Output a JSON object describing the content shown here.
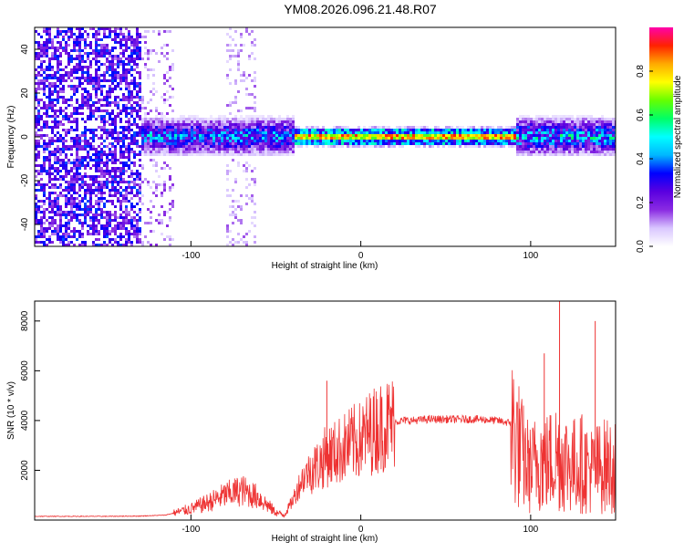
{
  "title": "YM08.2026.096.21.48.R07",
  "colors": {
    "spectrogram_low": "#e8dcff",
    "spectrogram_mid": "#6a1fd6",
    "snr_line": "#ee3333",
    "colormap": [
      "#ffffff",
      "#d9c6ff",
      "#8a2be2",
      "#5a00e0",
      "#0000ff",
      "#00b7ff",
      "#00ffff",
      "#00ff66",
      "#66ff00",
      "#ffff00",
      "#ffaa00",
      "#ff2200",
      "#ff00aa"
    ]
  },
  "chart_data": [
    {
      "type": "heatmap",
      "name": "spectrogram",
      "xlabel": "Height of straight line (km)",
      "ylabel": "Frequency (Hz)",
      "xlim": [
        -192,
        150
      ],
      "ylim": [
        -50,
        50
      ],
      "xticks": [
        -100,
        0,
        100
      ],
      "xtick_labels": [
        "-100",
        "0",
        "100"
      ],
      "yticks": [
        -40,
        -20,
        0,
        20,
        40
      ],
      "ytick_labels": [
        "-40",
        "-20",
        "0",
        "20",
        "40"
      ],
      "colorbar": {
        "label": "Normalized spectral amplitude",
        "range": [
          0,
          1
        ],
        "ticks": [
          0.0,
          0.2,
          0.4,
          0.6,
          0.8
        ],
        "tick_labels": [
          "0.0",
          "0.2",
          "0.4",
          "0.6",
          "0.8"
        ]
      },
      "segments": [
        {
          "x": [
            -192,
            -130
          ],
          "description": "broadband noise",
          "level": 0.25
        },
        {
          "x": [
            -130,
            -40
          ],
          "description": "noisy band near 0 Hz",
          "level": 0.45
        },
        {
          "x": [
            -40,
            90
          ],
          "description": "narrow strong band near 0 Hz",
          "level": 0.85
        },
        {
          "x": [
            90,
            150
          ],
          "description": "noisy band near 0 Hz",
          "level": 0.5
        }
      ]
    },
    {
      "type": "line",
      "name": "snr",
      "xlabel": "Height of straight line (km)",
      "ylabel": "SNR (10 * v/v)",
      "xlim": [
        -192,
        150
      ],
      "ylim": [
        0,
        8800
      ],
      "xticks": [
        -100,
        0,
        100
      ],
      "xtick_labels": [
        "-100",
        "0",
        "100"
      ],
      "yticks": [
        2000,
        4000,
        6000,
        8000
      ],
      "ytick_labels": [
        "2000",
        "4000",
        "6000",
        "8000"
      ],
      "series": [
        {
          "name": "SNR",
          "x": [
            -192,
            -170,
            -150,
            -130,
            -115,
            -100,
            -90,
            -80,
            -70,
            -60,
            -55,
            -50,
            -45,
            -40,
            -35,
            -30,
            -25,
            -20,
            -15,
            -10,
            -5,
            0,
            5,
            10,
            15,
            20,
            25,
            30,
            40,
            50,
            60,
            70,
            80,
            88,
            92,
            95,
            100,
            105,
            110,
            115,
            120,
            125,
            130,
            135,
            140,
            145,
            150
          ],
          "y": [
            150,
            150,
            150,
            160,
            200,
            450,
            700,
            1000,
            1200,
            900,
            600,
            300,
            200,
            800,
            1600,
            2000,
            2200,
            2600,
            2700,
            2900,
            3100,
            3200,
            3500,
            3700,
            3850,
            3950,
            4000,
            4000,
            4050,
            4050,
            4050,
            4050,
            4000,
            3900,
            3200,
            2600,
            2000,
            2500,
            2300,
            2600,
            2400,
            2200,
            2300,
            2000,
            2100,
            2200,
            2100
          ],
          "peaks": [
            {
              "x": -20,
              "y": 5600
            },
            {
              "x": 117,
              "y": 8800
            },
            {
              "x": 138,
              "y": 8000
            },
            {
              "x": 108,
              "y": 6700
            }
          ]
        }
      ]
    }
  ]
}
